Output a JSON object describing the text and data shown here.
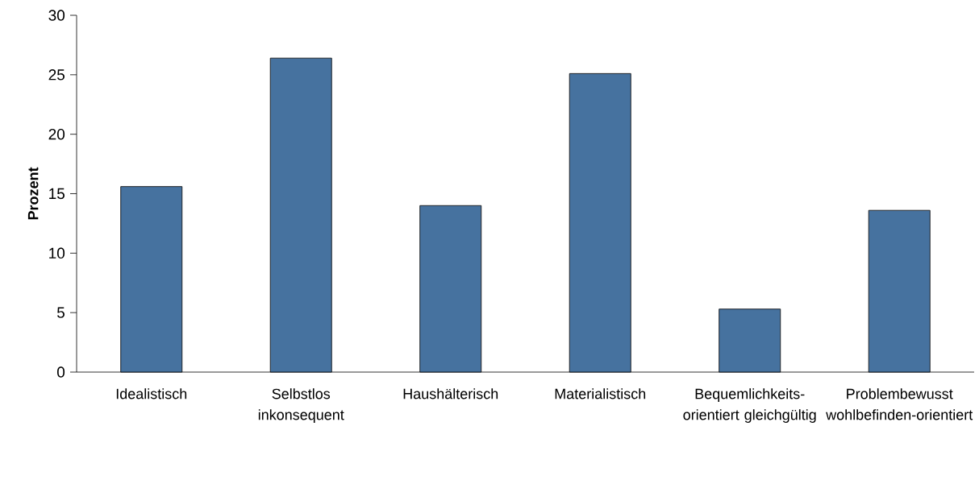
{
  "chart_data": {
    "type": "bar",
    "ylabel": "Prozent",
    "categories": [
      "Idealistisch",
      "Selbstlos inkonsequent",
      "Haushälterisch",
      "Materialistisch",
      "Bequemlichkeits-orientiert gleichgültig",
      "Problembewusst wohlbefinden-orientiert"
    ],
    "values": [
      15.6,
      26.4,
      14.0,
      25.1,
      5.3,
      13.6
    ],
    "color": "#46729f",
    "ylim": [
      0,
      30
    ],
    "yticks": [
      0,
      5,
      10,
      15,
      20,
      25,
      30
    ]
  }
}
